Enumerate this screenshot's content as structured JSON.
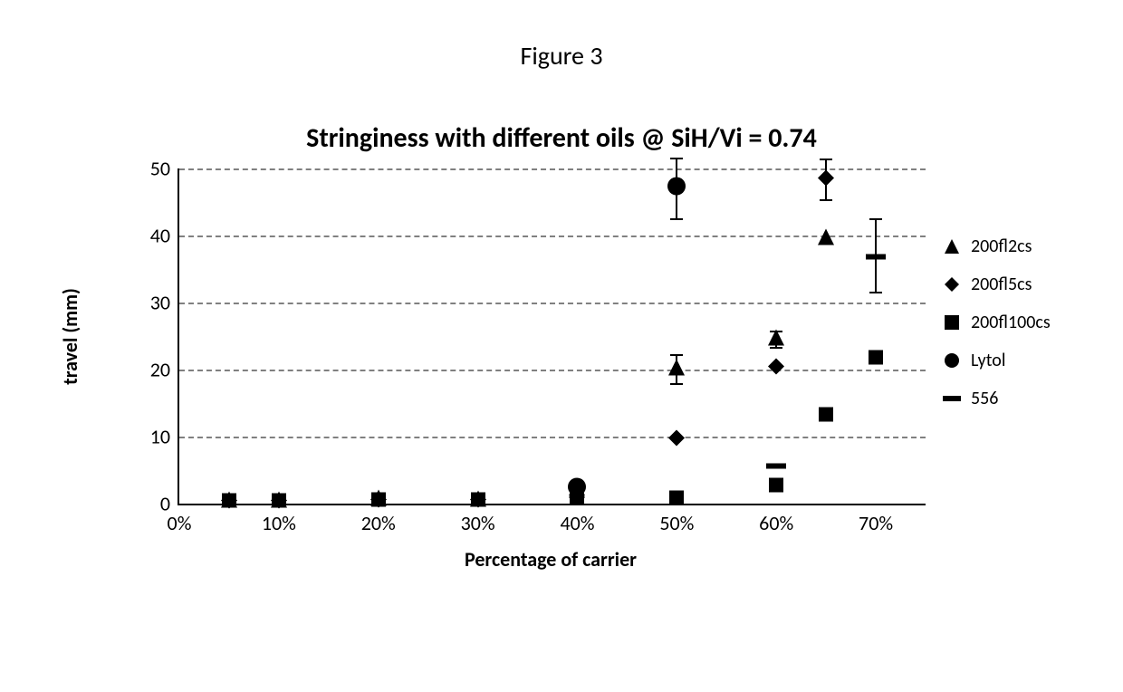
{
  "figure_label": "Figure 3",
  "chart": {
    "type": "scatter",
    "title": "Stringiness with different oils @ SiH/Vi = 0.74",
    "x_axis": {
      "label": "Percentage of carrier",
      "min": 0,
      "max": 75,
      "ticks": [
        0,
        10,
        20,
        30,
        40,
        50,
        60,
        70
      ],
      "tick_labels": [
        "0%",
        "10%",
        "20%",
        "30%",
        "40%",
        "50%",
        "60%",
        "70%"
      ],
      "label_fontsize": 22,
      "tick_fontsize": 22
    },
    "y_axis": {
      "label": "travel (mm)",
      "min": 0,
      "max": 50,
      "ticks": [
        0,
        10,
        20,
        30,
        40,
        50
      ],
      "tick_labels": [
        "0",
        "10",
        "20",
        "30",
        "40",
        "50"
      ],
      "label_fontsize": 22,
      "tick_fontsize": 22
    },
    "grid": {
      "y_lines_at": [
        10,
        20,
        30,
        40,
        50
      ],
      "color": "#808080",
      "style": "dashed"
    },
    "background_color": "#ffffff",
    "axis_color": "#000000",
    "series": [
      {
        "name": "200fl2cs",
        "marker": "triangle",
        "color": "#000000",
        "size": 18,
        "points": [
          {
            "x": 5,
            "y": 0.3
          },
          {
            "x": 10,
            "y": 0.3
          },
          {
            "x": 20,
            "y": 0.5
          },
          {
            "x": 30,
            "y": 0.4
          },
          {
            "x": 40,
            "y": 1.8
          },
          {
            "x": 50,
            "y": 20.0,
            "err": 2.2
          },
          {
            "x": 60,
            "y": 24.5,
            "err": 1.2
          },
          {
            "x": 65,
            "y": 39.5
          }
        ]
      },
      {
        "name": "200fl5cs",
        "marker": "diamond",
        "color": "#000000",
        "size": 18,
        "points": [
          {
            "x": 5,
            "y": 0.2
          },
          {
            "x": 10,
            "y": 0.2
          },
          {
            "x": 20,
            "y": 0.3
          },
          {
            "x": 30,
            "y": 0.3
          },
          {
            "x": 40,
            "y": 1.0
          },
          {
            "x": 50,
            "y": 9.5
          },
          {
            "x": 60,
            "y": 20.2
          },
          {
            "x": 65,
            "y": 48.3,
            "err": 3.0
          }
        ]
      },
      {
        "name": "200fl100cs",
        "marker": "square",
        "color": "#000000",
        "size": 16,
        "points": [
          {
            "x": 5,
            "y": 0.2
          },
          {
            "x": 10,
            "y": 0.2
          },
          {
            "x": 20,
            "y": 0.3
          },
          {
            "x": 30,
            "y": 0.3
          },
          {
            "x": 40,
            "y": 0.5
          },
          {
            "x": 50,
            "y": 0.6
          },
          {
            "x": 60,
            "y": 2.5
          },
          {
            "x": 65,
            "y": 13.0
          },
          {
            "x": 70,
            "y": 21.5
          }
        ]
      },
      {
        "name": "Lytol",
        "marker": "circle",
        "color": "#000000",
        "size": 20,
        "points": [
          {
            "x": 40,
            "y": 2.2
          },
          {
            "x": 50,
            "y": 47.0,
            "err": 4.5
          }
        ]
      },
      {
        "name": "556",
        "marker": "dash",
        "color": "#000000",
        "size_w": 22,
        "size_h": 6,
        "points": [
          {
            "x": 60,
            "y": 5.8
          },
          {
            "x": 70,
            "y": 37.0,
            "err": 5.5
          }
        ]
      }
    ],
    "legend": {
      "items": [
        "200fl2cs",
        "200fl5cs",
        "200fl100cs",
        "Lytol",
        "556"
      ],
      "fontsize": 20
    }
  }
}
